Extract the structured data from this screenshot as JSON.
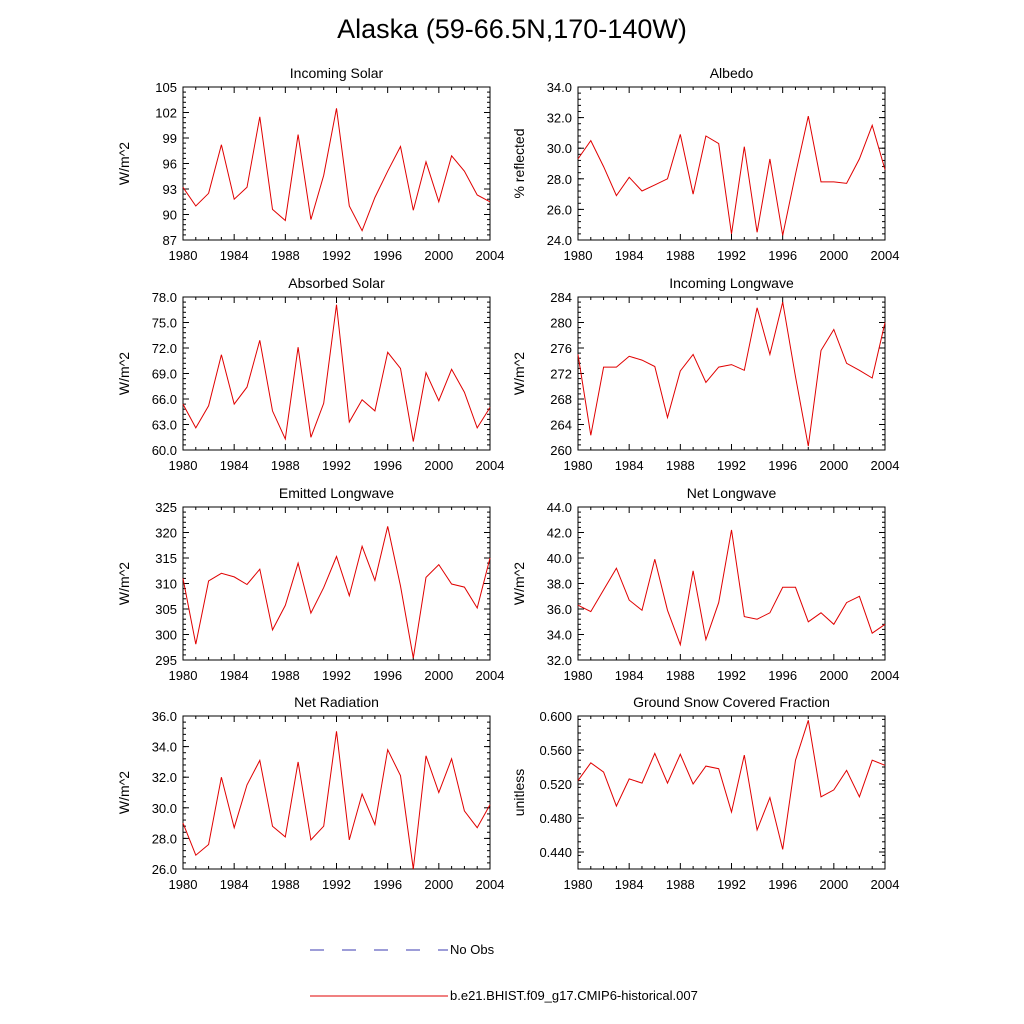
{
  "title": "Alaska (59-66.5N,170-140W)",
  "legend": {
    "obs_label": "No Obs",
    "obs_color": "#3b3bb0",
    "model_label": "b.e21.BHIST.f09_g17.CMIP6-historical.007",
    "model_color": "#e00000"
  },
  "chart_data": [
    {
      "type": "line",
      "title": "Incoming Solar",
      "ylabel": "W/m^2",
      "xlim": [
        1980,
        2004
      ],
      "ylim": [
        87,
        105
      ],
      "yticks": [
        "87",
        "90",
        "93",
        "96",
        "99",
        "102",
        "105"
      ],
      "xticks": [
        "1980",
        "1984",
        "1988",
        "1992",
        "1996",
        "2000",
        "2004"
      ],
      "x": [
        1980,
        1981,
        1982,
        1983,
        1984,
        1985,
        1986,
        1987,
        1988,
        1989,
        1990,
        1991,
        1992,
        1993,
        1994,
        1995,
        1996,
        1997,
        1998,
        1999,
        2000,
        2001,
        2002,
        2003,
        2004
      ],
      "series": [
        {
          "values": [
            93.2,
            91.0,
            92.5,
            98.2,
            91.8,
            93.2,
            101.5,
            90.6,
            89.3,
            99.4,
            89.4,
            94.6,
            102.5,
            91.0,
            88.1,
            92.0,
            95.1,
            98.0,
            90.5,
            96.2,
            91.5,
            96.9,
            95.1,
            92.3,
            91.5
          ]
        }
      ]
    },
    {
      "type": "line",
      "title": "Albedo",
      "ylabel": "% reflected",
      "xlim": [
        1980,
        2004
      ],
      "ylim": [
        24,
        34
      ],
      "yticks": [
        "24.0",
        "26.0",
        "28.0",
        "30.0",
        "32.0",
        "34.0"
      ],
      "xticks": [
        "1980",
        "1984",
        "1988",
        "1992",
        "1996",
        "2000",
        "2004"
      ],
      "x": [
        1980,
        1981,
        1982,
        1983,
        1984,
        1985,
        1986,
        1987,
        1988,
        1989,
        1990,
        1991,
        1992,
        1993,
        1994,
        1995,
        1996,
        1997,
        1998,
        1999,
        2000,
        2001,
        2002,
        2003,
        2004
      ],
      "series": [
        {
          "values": [
            29.3,
            30.5,
            28.8,
            26.9,
            28.1,
            27.2,
            27.6,
            28.0,
            30.9,
            27.0,
            30.8,
            30.3,
            24.4,
            30.1,
            24.5,
            29.3,
            24.3,
            28.3,
            32.1,
            27.8,
            27.8,
            27.7,
            29.3,
            31.5,
            28.6
          ]
        }
      ]
    },
    {
      "type": "line",
      "title": "Absorbed Solar",
      "ylabel": "W/m^2",
      "xlim": [
        1980,
        2004
      ],
      "ylim": [
        60,
        78
      ],
      "yticks": [
        "60.0",
        "63.0",
        "66.0",
        "69.0",
        "72.0",
        "75.0",
        "78.0"
      ],
      "xticks": [
        "1980",
        "1984",
        "1988",
        "1992",
        "1996",
        "2000",
        "2004"
      ],
      "x": [
        1980,
        1981,
        1982,
        1983,
        1984,
        1985,
        1986,
        1987,
        1988,
        1989,
        1990,
        1991,
        1992,
        1993,
        1994,
        1995,
        1996,
        1997,
        1998,
        1999,
        2000,
        2001,
        2002,
        2003,
        2004
      ],
      "series": [
        {
          "values": [
            65.4,
            62.6,
            65.2,
            71.2,
            65.4,
            67.4,
            72.9,
            64.6,
            61.3,
            72.1,
            61.5,
            65.5,
            77.1,
            63.3,
            65.9,
            64.6,
            71.5,
            69.6,
            61.0,
            69.1,
            65.8,
            69.5,
            66.8,
            62.6,
            65.0
          ]
        }
      ]
    },
    {
      "type": "line",
      "title": "Incoming Longwave",
      "ylabel": "W/m^2",
      "xlim": [
        1980,
        2004
      ],
      "ylim": [
        260,
        284
      ],
      "yticks": [
        "260",
        "264",
        "268",
        "272",
        "276",
        "280",
        "284"
      ],
      "xticks": [
        "1980",
        "1984",
        "1988",
        "1992",
        "1996",
        "2000",
        "2004"
      ],
      "x": [
        1980,
        1981,
        1982,
        1983,
        1984,
        1985,
        1986,
        1987,
        1988,
        1989,
        1990,
        1991,
        1992,
        1993,
        1994,
        1995,
        1996,
        1997,
        1998,
        1999,
        2000,
        2001,
        2002,
        2003,
        2004
      ],
      "series": [
        {
          "values": [
            275.0,
            262.3,
            273.0,
            273.0,
            274.7,
            274.1,
            273.1,
            265.1,
            272.4,
            275.0,
            270.6,
            273.0,
            273.4,
            272.5,
            282.3,
            275.0,
            283.2,
            271.5,
            260.6,
            275.6,
            278.9,
            273.6,
            272.5,
            271.3,
            280.0
          ]
        }
      ]
    },
    {
      "type": "line",
      "title": "Emitted Longwave",
      "ylabel": "W/m^2",
      "xlim": [
        1980,
        2004
      ],
      "ylim": [
        295,
        325
      ],
      "yticks": [
        "295",
        "300",
        "305",
        "310",
        "315",
        "320",
        "325"
      ],
      "xticks": [
        "1980",
        "1984",
        "1988",
        "1992",
        "1996",
        "2000",
        "2004"
      ],
      "x": [
        1980,
        1981,
        1982,
        1983,
        1984,
        1985,
        1986,
        1987,
        1988,
        1989,
        1990,
        1991,
        1992,
        1993,
        1994,
        1995,
        1996,
        1997,
        1998,
        1999,
        2000,
        2001,
        2002,
        2003,
        2004
      ],
      "series": [
        {
          "values": [
            311.0,
            298.1,
            310.5,
            312.0,
            311.3,
            309.8,
            312.8,
            300.9,
            305.7,
            314.0,
            304.2,
            309.2,
            315.3,
            307.6,
            317.3,
            310.6,
            321.2,
            309.5,
            295.4,
            311.2,
            313.7,
            309.9,
            309.3,
            305.2,
            315.0
          ]
        }
      ]
    },
    {
      "type": "line",
      "title": "Net Longwave",
      "ylabel": "W/m^2",
      "xlim": [
        1980,
        2004
      ],
      "ylim": [
        32,
        44
      ],
      "yticks": [
        "32.0",
        "34.0",
        "36.0",
        "38.0",
        "40.0",
        "42.0",
        "44.0"
      ],
      "xticks": [
        "1980",
        "1984",
        "1988",
        "1992",
        "1996",
        "2000",
        "2004"
      ],
      "x": [
        1980,
        1981,
        1982,
        1983,
        1984,
        1985,
        1986,
        1987,
        1988,
        1989,
        1990,
        1991,
        1992,
        1993,
        1994,
        1995,
        1996,
        1997,
        1998,
        1999,
        2000,
        2001,
        2002,
        2003,
        2004
      ],
      "series": [
        {
          "values": [
            36.3,
            35.8,
            37.5,
            39.2,
            36.7,
            35.9,
            39.9,
            35.9,
            33.2,
            39.0,
            33.6,
            36.5,
            42.2,
            35.4,
            35.2,
            35.7,
            37.7,
            37.7,
            35.0,
            35.7,
            34.8,
            36.5,
            37.0,
            34.1,
            34.8
          ]
        }
      ]
    },
    {
      "type": "line",
      "title": "Net Radiation",
      "ylabel": "W/m^2",
      "xlim": [
        1980,
        2004
      ],
      "ylim": [
        26,
        36
      ],
      "yticks": [
        "26.0",
        "28.0",
        "30.0",
        "32.0",
        "34.0",
        "36.0"
      ],
      "xticks": [
        "1980",
        "1984",
        "1988",
        "1992",
        "1996",
        "2000",
        "2004"
      ],
      "x": [
        1980,
        1981,
        1982,
        1983,
        1984,
        1985,
        1986,
        1987,
        1988,
        1989,
        1990,
        1991,
        1992,
        1993,
        1994,
        1995,
        1996,
        1997,
        1998,
        1999,
        2000,
        2001,
        2002,
        2003,
        2004
      ],
      "series": [
        {
          "values": [
            29.0,
            26.9,
            27.6,
            32.0,
            28.7,
            31.5,
            33.1,
            28.8,
            28.1,
            33.0,
            27.9,
            28.8,
            35.0,
            27.9,
            30.9,
            28.9,
            33.8,
            32.1,
            25.9,
            33.4,
            31.0,
            33.2,
            29.8,
            28.7,
            30.2
          ]
        }
      ]
    },
    {
      "type": "line",
      "title": "Ground Snow Covered Fraction",
      "ylabel": "unitless",
      "xlim": [
        1980,
        2004
      ],
      "ylim": [
        0.42,
        0.6
      ],
      "yticks": [
        "0.440",
        "0.480",
        "0.520",
        "0.560",
        "0.600"
      ],
      "ytick_values": [
        0.44,
        0.48,
        0.52,
        0.56,
        0.6
      ],
      "xticks": [
        "1980",
        "1984",
        "1988",
        "1992",
        "1996",
        "2000",
        "2004"
      ],
      "x": [
        1980,
        1981,
        1982,
        1983,
        1984,
        1985,
        1986,
        1987,
        1988,
        1989,
        1990,
        1991,
        1992,
        1993,
        1994,
        1995,
        1996,
        1997,
        1998,
        1999,
        2000,
        2001,
        2002,
        2003,
        2004
      ],
      "series": [
        {
          "values": [
            0.524,
            0.545,
            0.534,
            0.494,
            0.526,
            0.521,
            0.556,
            0.521,
            0.555,
            0.52,
            0.541,
            0.538,
            0.487,
            0.554,
            0.466,
            0.504,
            0.443,
            0.548,
            0.595,
            0.505,
            0.513,
            0.536,
            0.505,
            0.548,
            0.542
          ]
        }
      ]
    }
  ]
}
